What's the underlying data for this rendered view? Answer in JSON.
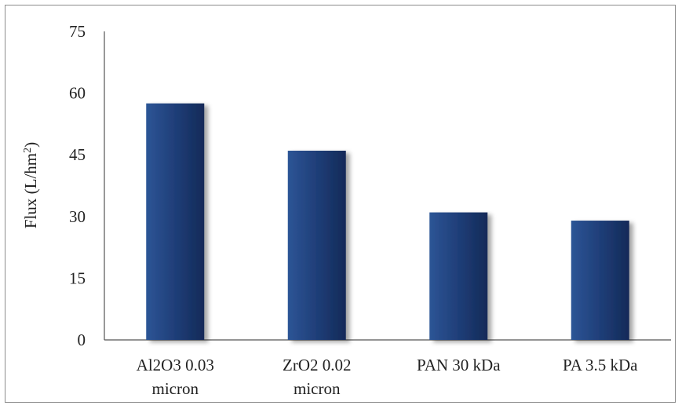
{
  "chart_data": {
    "type": "bar",
    "categories": [
      [
        "Al2O3 0.03",
        "micron"
      ],
      [
        "ZrO2 0.02",
        "micron"
      ],
      [
        "PAN 30 kDa"
      ],
      [
        "PA 3.5 kDa"
      ]
    ],
    "values": [
      57.5,
      46,
      31,
      29
    ],
    "ylabel": "Flux  (L/hm",
    "ylabel_sup": "2",
    "ylabel_close": ")",
    "ylim": [
      0,
      75
    ],
    "yticks": [
      0,
      15,
      30,
      45,
      60,
      75
    ],
    "bar_color": "#1f3e78",
    "grid": false
  }
}
